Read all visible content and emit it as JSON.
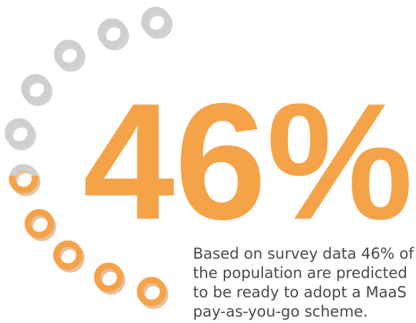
{
  "stat": {
    "value": 46,
    "label": "46%"
  },
  "description": [
    "Based on survey data 46% of",
    "the population are predicted",
    "to be ready to adopt a MaaS",
    "pay-as-you-go scheme."
  ]
}
